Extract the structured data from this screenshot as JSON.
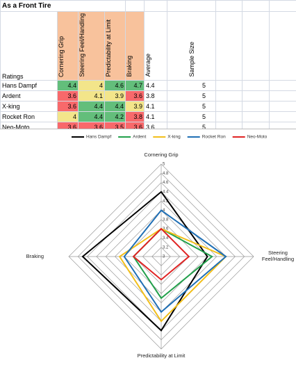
{
  "table": {
    "title": "As a Front Tire",
    "corner": "Ratings",
    "columns": [
      "Cornering Grip",
      "Steering Feel/Handling",
      "Predictability at Limit",
      "Braking",
      "Average",
      "Sample Size"
    ],
    "header_color": "#f8c29c",
    "rows": [
      {
        "name": "Hans Dampf",
        "values": [
          4.4,
          4,
          4.6,
          4.7,
          4.4,
          5
        ],
        "colors": [
          "#63be7b",
          "#f3e58a",
          "#63be7b",
          "#63be7b"
        ]
      },
      {
        "name": "Ardent",
        "values": [
          3.6,
          4.1,
          3.9,
          3.6,
          3.8,
          5
        ],
        "colors": [
          "#f8696b",
          "#f3e58a",
          "#f3e58a",
          "#f8696b"
        ]
      },
      {
        "name": "X-king",
        "values": [
          3.6,
          4.4,
          4.4,
          3.9,
          4.1,
          5
        ],
        "colors": [
          "#f8696b",
          "#63be7b",
          "#63be7b",
          "#f3e58a"
        ]
      },
      {
        "name": "Rocket Ron",
        "values": [
          4,
          4.4,
          4.2,
          3.8,
          4.1,
          5
        ],
        "colors": [
          "#f3e58a",
          "#63be7b",
          "#63be7b",
          "#f8696b"
        ]
      },
      {
        "name": "Neo-Moto",
        "values": [
          3.6,
          3.6,
          3.5,
          3.6,
          3.6,
          5
        ],
        "colors": [
          "#f8696b",
          "#f8696b",
          "#f8696b",
          "#f8696b"
        ]
      }
    ]
  },
  "chart_data": {
    "type": "radar",
    "categories": [
      "Cornering Grip",
      "Steering Feel/Handling",
      "Predictability at Limit",
      "Braking"
    ],
    "rlim": [
      3,
      5
    ],
    "rticks": [
      3,
      3.2,
      3.4,
      3.6,
      3.8,
      4,
      4.2,
      4.4,
      4.6,
      4.8,
      5
    ],
    "grid": true,
    "legend": "top",
    "series": [
      {
        "name": "Hans Dampf",
        "color": "#000000",
        "values": [
          4.4,
          4,
          4.6,
          4.7
        ]
      },
      {
        "name": "Ardent",
        "color": "#22a04b",
        "values": [
          3.6,
          4.1,
          3.9,
          3.6
        ]
      },
      {
        "name": "X-king",
        "color": "#f2bf1a",
        "values": [
          3.6,
          4.4,
          4.4,
          3.9
        ]
      },
      {
        "name": "Rocket Ron",
        "color": "#1f6fb5",
        "values": [
          4,
          4.4,
          4.2,
          3.8
        ]
      },
      {
        "name": "Neo-Moto",
        "color": "#e02424",
        "values": [
          3.6,
          3.6,
          3.5,
          3.6
        ]
      }
    ]
  }
}
